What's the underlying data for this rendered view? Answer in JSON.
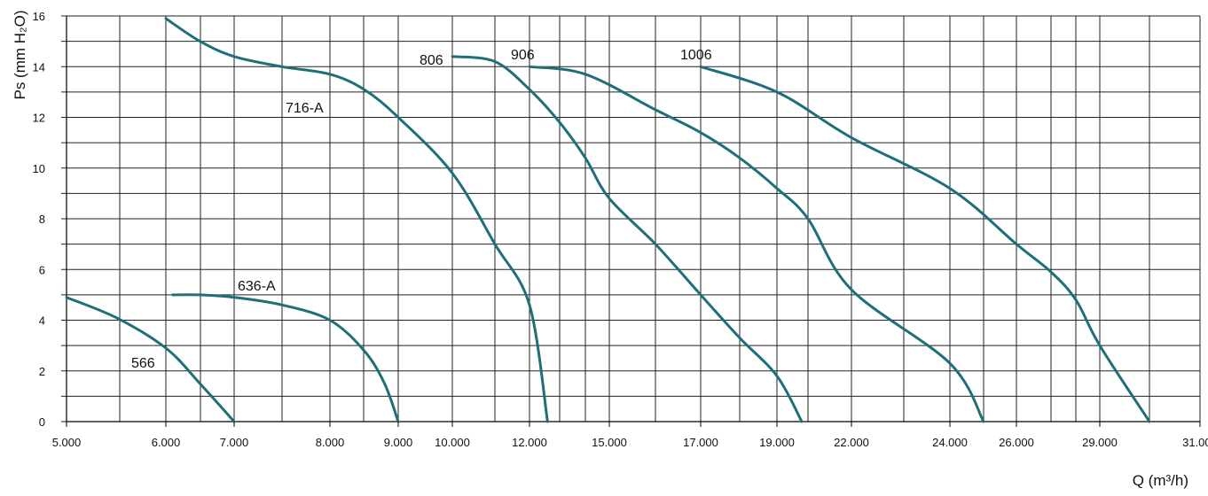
{
  "chart_data": {
    "type": "line",
    "title": "",
    "xlabel": "Q (m³/h)",
    "ylabel": "Ps (mm H₂O)",
    "x_scale": "non-uniform (each printed tick label is placed at its own position)",
    "ylim": [
      0,
      16
    ],
    "grid": true,
    "legend": "none (series names printed beside curves)",
    "series_color": "#1f6f78",
    "x_ticks": [
      "5.000",
      "6.000",
      "7.000",
      "8.000",
      "9.000",
      "10.000",
      "12.000",
      "15.000",
      "17.000",
      "19.000",
      "22.000",
      "24.000",
      "26.000",
      "29.000",
      "31.000"
    ],
    "y_ticks": [
      "0",
      "2",
      "4",
      "6",
      "8",
      "10",
      "12",
      "14",
      "16"
    ],
    "series": [
      {
        "name": "566",
        "x": [
          5000,
          5500,
          6000,
          6500,
          7000
        ],
        "y": [
          4.9,
          4.1,
          2.9,
          1.5,
          0
        ]
      },
      {
        "name": "636-A",
        "x": [
          6100,
          6500,
          7000,
          7500,
          8000,
          8500,
          8800,
          9000
        ],
        "y": [
          5.0,
          5.0,
          4.9,
          4.6,
          4.0,
          2.8,
          1.5,
          0
        ]
      },
      {
        "name": "716-A",
        "x": [
          6000,
          6500,
          7000,
          7500,
          8000,
          8500,
          9000,
          10000,
          11000,
          12000,
          12600
        ],
        "y": [
          15.9,
          15.0,
          14.4,
          14.0,
          13.7,
          13.1,
          12.0,
          9.8,
          7.0,
          4.6,
          0
        ]
      },
      {
        "name": "806",
        "x": [
          10000,
          11000,
          12000,
          13000,
          14000,
          15000,
          16000,
          17000,
          18000,
          19000,
          19800
        ],
        "y": [
          14.4,
          14.2,
          13.1,
          11.8,
          10.4,
          8.8,
          7.0,
          5.0,
          3.3,
          1.8,
          0
        ]
      },
      {
        "name": "906",
        "x": [
          12000,
          14000,
          16000,
          17000,
          18000,
          19000,
          20000,
          22000,
          24000,
          25000
        ],
        "y": [
          14.0,
          13.7,
          12.3,
          11.4,
          10.4,
          9.2,
          8.0,
          5.2,
          2.3,
          0
        ]
      },
      {
        "name": "1006",
        "x": [
          17000,
          19000,
          22000,
          24000,
          26000,
          27000,
          28000,
          29000,
          30000
        ],
        "y": [
          14.0,
          13.0,
          11.2,
          9.2,
          7.0,
          5.9,
          4.8,
          3.0,
          0
        ]
      }
    ]
  }
}
